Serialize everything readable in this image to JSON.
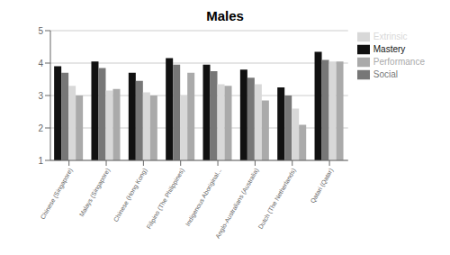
{
  "chart_data": {
    "type": "bar",
    "title": "Males",
    "categories": [
      "Chinese (Singapore)",
      "Malays (Singapore)",
      "Chinese (Hong Kong)",
      "Filipino (The Philippines)",
      "Indigenous Aboriginal...",
      "Anglo-Australians (Australia)",
      "Dutch (The Netherlands)",
      "Qatari (Qatar)"
    ],
    "series": [
      {
        "name": "Mastery",
        "color": "#111111",
        "values": [
          3.9,
          4.05,
          3.7,
          4.15,
          3.95,
          3.8,
          3.25,
          4.35
        ]
      },
      {
        "name": "Social",
        "color": "#777777",
        "values": [
          3.7,
          3.85,
          3.45,
          3.95,
          3.75,
          3.55,
          3.0,
          4.1
        ]
      },
      {
        "name": "Extrinsic",
        "color": "#d8d8d8",
        "values": [
          3.3,
          3.15,
          3.1,
          3.0,
          3.35,
          3.35,
          2.6,
          4.05
        ]
      },
      {
        "name": "Performance",
        "color": "#aaaaaa",
        "values": [
          3.0,
          3.2,
          3.0,
          3.7,
          3.3,
          2.85,
          2.1,
          4.05
        ]
      }
    ],
    "ylim": [
      1,
      5
    ],
    "yticks": [
      1,
      2,
      3,
      4,
      5
    ],
    "grid": true,
    "legend": "right"
  }
}
